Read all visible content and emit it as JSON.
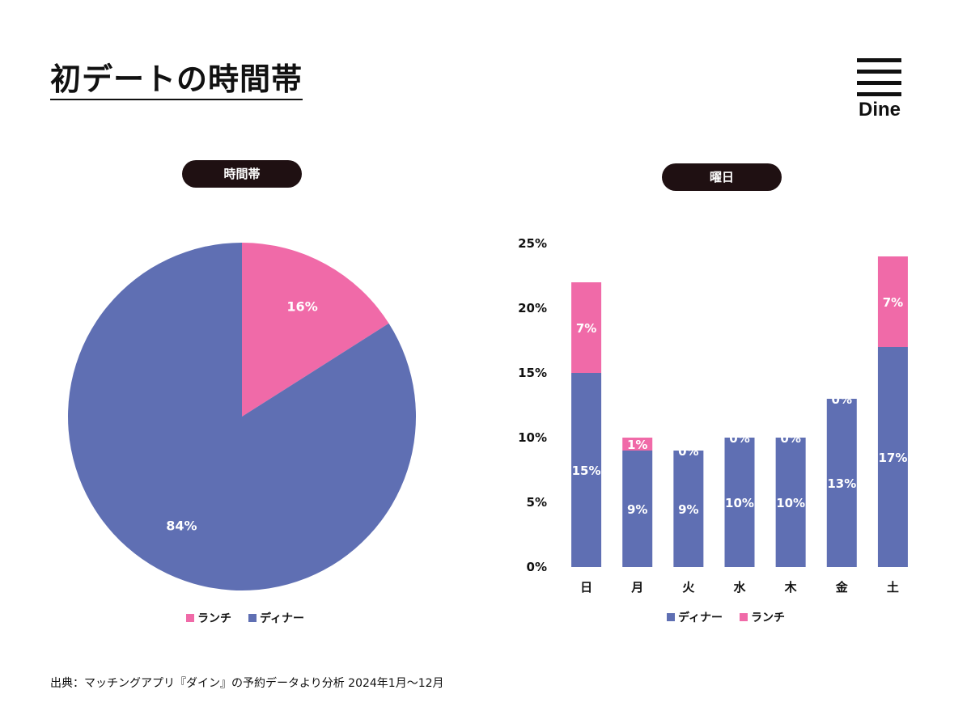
{
  "header": {
    "title": "初デートの時間帯",
    "logo_text": "Dine"
  },
  "source_note": "出典：マッチングアプリ『ダイン』の予約データより分析 2024年1月〜12月",
  "colors": {
    "dinner": "#5f6fb3",
    "lunch": "#f06aa8",
    "pill": "#1f1012"
  },
  "chart_data": [
    {
      "type": "pie",
      "title": "時間帯",
      "slices": [
        {
          "name": "ランチ",
          "value": 16,
          "label": "16%",
          "color": "#f06aa8"
        },
        {
          "name": "ディナー",
          "value": 84,
          "label": "84%",
          "color": "#5f6fb3"
        }
      ],
      "start_angle_deg": 0,
      "direction": "clockwise",
      "legend": [
        "ランチ",
        "ディナー"
      ],
      "legend_position": "bottom"
    },
    {
      "type": "bar",
      "stacked": true,
      "title": "曜日",
      "categories": [
        "日",
        "月",
        "火",
        "水",
        "木",
        "金",
        "土"
      ],
      "series": [
        {
          "name": "ディナー",
          "color": "#5f6fb3",
          "values": [
            15,
            9,
            9,
            10,
            10,
            13,
            17
          ],
          "labels": [
            "15%",
            "9%",
            "9%",
            "10%",
            "10%",
            "13%",
            "17%"
          ]
        },
        {
          "name": "ランチ",
          "color": "#f06aa8",
          "values": [
            7,
            1,
            0,
            0,
            0,
            0,
            7
          ],
          "labels": [
            "7%",
            "1%",
            "0%",
            "0%",
            "0%",
            "0%",
            "7%"
          ]
        }
      ],
      "ylim": [
        0,
        25
      ],
      "yticks": [
        0,
        5,
        10,
        15,
        20,
        25
      ],
      "ytick_labels": [
        "0%",
        "5%",
        "10%",
        "15%",
        "20%",
        "25%"
      ],
      "grid": false,
      "legend": [
        "ディナー",
        "ランチ"
      ],
      "legend_position": "bottom"
    }
  ]
}
